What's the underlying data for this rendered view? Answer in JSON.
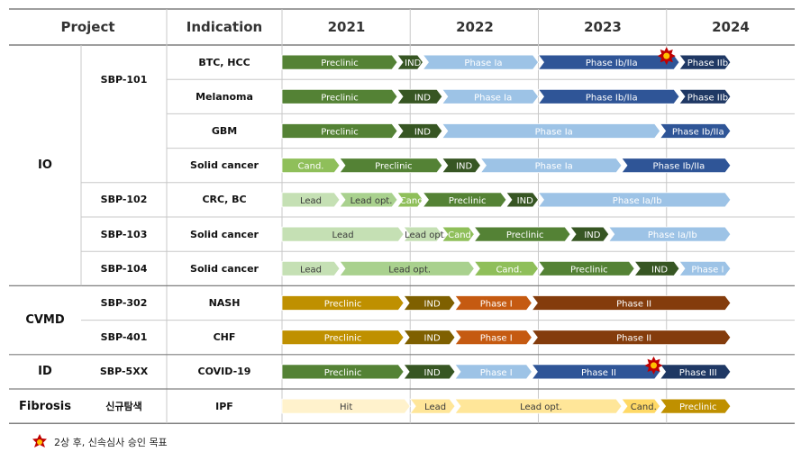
{
  "headers": {
    "project": "Project",
    "indication": "Indication",
    "years": [
      "2021",
      "2022",
      "2023",
      "2024"
    ]
  },
  "groups": [
    {
      "name": "IO",
      "rows": [
        0,
        6
      ]
    },
    {
      "name": "CVMD",
      "rows": [
        7,
        8
      ]
    },
    {
      "name": "ID",
      "rows": [
        9,
        9
      ]
    },
    {
      "name": "Fibrosis",
      "rows": [
        10,
        10
      ]
    }
  ],
  "programs": [
    {
      "name": "SBP-101",
      "rows": [
        0,
        3
      ]
    },
    {
      "name": "SBP-102",
      "rows": [
        4,
        4
      ]
    },
    {
      "name": "SBP-103",
      "rows": [
        5,
        5
      ]
    },
    {
      "name": "SBP-104",
      "rows": [
        6,
        6
      ]
    },
    {
      "name": "SBP-302",
      "rows": [
        7,
        7
      ]
    },
    {
      "name": "SBP-401",
      "rows": [
        8,
        8
      ]
    },
    {
      "name": "SBP-5XX",
      "rows": [
        9,
        9
      ]
    },
    {
      "name": "신규탐색",
      "rows": [
        10,
        10
      ]
    }
  ],
  "colors": {
    "header_text": "#333333",
    "grid": "#c8c8c8",
    "rule": "#7f7f7f",
    "candidate": "#8fbf5a",
    "lead_light": "#c5e0b4",
    "lead_opt_light": "#a9d18e",
    "lead_2": "#b4d79a",
    "preclinic_green": "#548235",
    "ind_dark_green": "#375623",
    "phase_light_blue": "#9dc3e6",
    "phase_dark_blue": "#2f5597",
    "phase_navy": "#1f3864",
    "gold": "#bf9000",
    "orange": "#c55a11",
    "brown": "#843c0c",
    "hit": "#fff2cc",
    "lead_yellow": "#ffe699",
    "cand_yellow": "#ffd966",
    "star": "#c00000",
    "star_inner": "#ffc000"
  },
  "chart_data": {
    "type": "gantt",
    "title": "",
    "x_axis": {
      "labels": [
        "2021",
        "2022",
        "2023",
        "2024"
      ],
      "range": [
        2021.0,
        2025.0
      ]
    },
    "legend": {
      "symbol": "star",
      "text": "2상 후, 신속심사 승인 목표"
    },
    "rows": [
      {
        "indication": "BTC, HCC",
        "bars": [
          {
            "label": "Preclinic",
            "start": 2021.0,
            "end": 2021.9,
            "color": "#548235"
          },
          {
            "label": "IND",
            "start": 2021.9,
            "end": 2022.1,
            "color": "#375623"
          },
          {
            "label": "Phase Ia",
            "start": 2022.1,
            "end": 2023.0,
            "color": "#9dc3e6"
          },
          {
            "label": "Phase Ib/IIa",
            "start": 2023.0,
            "end": 2024.1,
            "color": "#2f5597"
          },
          {
            "label": "Phase IIb",
            "start": 2024.1,
            "end": 2024.5,
            "color": "#1f3864"
          }
        ],
        "star": 2024.0
      },
      {
        "indication": "Melanoma",
        "bars": [
          {
            "label": "Preclinic",
            "start": 2021.0,
            "end": 2021.9,
            "color": "#548235"
          },
          {
            "label": "IND",
            "start": 2021.9,
            "end": 2022.25,
            "color": "#375623"
          },
          {
            "label": "Phase Ia",
            "start": 2022.25,
            "end": 2023.0,
            "color": "#9dc3e6"
          },
          {
            "label": "Phase Ib/IIa",
            "start": 2023.0,
            "end": 2024.1,
            "color": "#2f5597"
          },
          {
            "label": "Phase IIb",
            "start": 2024.1,
            "end": 2024.5,
            "color": "#1f3864"
          }
        ]
      },
      {
        "indication": "GBM",
        "bars": [
          {
            "label": "Preclinic",
            "start": 2021.0,
            "end": 2021.9,
            "color": "#548235"
          },
          {
            "label": "IND",
            "start": 2021.9,
            "end": 2022.25,
            "color": "#375623"
          },
          {
            "label": "Phase Ia",
            "start": 2022.25,
            "end": 2023.95,
            "color": "#9dc3e6"
          },
          {
            "label": "Phase Ib/IIa",
            "start": 2023.95,
            "end": 2024.5,
            "color": "#2f5597"
          }
        ]
      },
      {
        "indication": "Solid cancer",
        "bars": [
          {
            "label": "Cand.",
            "start": 2021.0,
            "end": 2021.45,
            "color": "#8fbf5a"
          },
          {
            "label": "Preclinic",
            "start": 2021.45,
            "end": 2022.25,
            "color": "#548235"
          },
          {
            "label": "IND",
            "start": 2022.25,
            "end": 2022.55,
            "color": "#375623"
          },
          {
            "label": "Phase Ia",
            "start": 2022.55,
            "end": 2023.65,
            "color": "#9dc3e6"
          },
          {
            "label": "Phase Ib/IIa",
            "start": 2023.65,
            "end": 2024.5,
            "color": "#2f5597"
          }
        ]
      },
      {
        "indication": "CRC, BC",
        "bars": [
          {
            "label": "Lead",
            "start": 2021.0,
            "end": 2021.45,
            "color": "#c5e0b4"
          },
          {
            "label": "Lead opt.",
            "start": 2021.45,
            "end": 2021.9,
            "color": "#a9d18e"
          },
          {
            "label": "Cand.",
            "start": 2021.9,
            "end": 2022.1,
            "color": "#8fbf5a"
          },
          {
            "label": "Preclinic",
            "start": 2022.1,
            "end": 2022.75,
            "color": "#548235"
          },
          {
            "label": "IND",
            "start": 2022.75,
            "end": 2023.0,
            "color": "#375623"
          },
          {
            "label": "Phase Ia/Ib",
            "start": 2023.0,
            "end": 2024.5,
            "color": "#9dc3e6"
          }
        ]
      },
      {
        "indication": "Solid cancer",
        "bars": [
          {
            "label": "Lead",
            "start": 2021.0,
            "end": 2021.95,
            "color": "#c5e0b4"
          },
          {
            "label": "Lead opt.",
            "start": 2021.95,
            "end": 2022.25,
            "color": "#c5e0b4"
          },
          {
            "label": "Cand.",
            "start": 2022.25,
            "end": 2022.5,
            "color": "#8fbf5a"
          },
          {
            "label": "Preclinic",
            "start": 2022.5,
            "end": 2023.25,
            "color": "#548235"
          },
          {
            "label": "IND",
            "start": 2023.25,
            "end": 2023.55,
            "color": "#375623"
          },
          {
            "label": "Phase Ia/Ib",
            "start": 2023.55,
            "end": 2024.5,
            "color": "#9dc3e6"
          }
        ]
      },
      {
        "indication": "Solid cancer",
        "bars": [
          {
            "label": "Lead",
            "start": 2021.0,
            "end": 2021.45,
            "color": "#c5e0b4"
          },
          {
            "label": "Lead opt.",
            "start": 2021.45,
            "end": 2022.5,
            "color": "#a9d18e"
          },
          {
            "label": "Cand.",
            "start": 2022.5,
            "end": 2023.0,
            "color": "#8fbf5a"
          },
          {
            "label": "Preclinic",
            "start": 2023.0,
            "end": 2023.75,
            "color": "#548235"
          },
          {
            "label": "IND",
            "start": 2023.75,
            "end": 2024.1,
            "color": "#375623"
          },
          {
            "label": "Phase I",
            "start": 2024.1,
            "end": 2024.5,
            "color": "#9dc3e6"
          }
        ]
      },
      {
        "indication": "NASH",
        "bars": [
          {
            "label": "Preclinic",
            "start": 2021.0,
            "end": 2021.95,
            "color": "#bf9000"
          },
          {
            "label": "IND",
            "start": 2021.95,
            "end": 2022.35,
            "color": "#7f6000"
          },
          {
            "label": "Phase I",
            "start": 2022.35,
            "end": 2022.95,
            "color": "#c55a11"
          },
          {
            "label": "Phase II",
            "start": 2022.95,
            "end": 2024.5,
            "color": "#843c0c"
          }
        ]
      },
      {
        "indication": "CHF",
        "bars": [
          {
            "label": "Preclinic",
            "start": 2021.0,
            "end": 2021.95,
            "color": "#bf9000"
          },
          {
            "label": "IND",
            "start": 2021.95,
            "end": 2022.35,
            "color": "#7f6000"
          },
          {
            "label": "Phase I",
            "start": 2022.35,
            "end": 2022.95,
            "color": "#c55a11"
          },
          {
            "label": "Phase II",
            "start": 2022.95,
            "end": 2024.5,
            "color": "#843c0c"
          }
        ]
      },
      {
        "indication": "COVID-19",
        "bars": [
          {
            "label": "Preclinic",
            "start": 2021.0,
            "end": 2021.95,
            "color": "#548235"
          },
          {
            "label": "IND",
            "start": 2021.95,
            "end": 2022.35,
            "color": "#375623"
          },
          {
            "label": "Phase I",
            "start": 2022.35,
            "end": 2022.95,
            "color": "#9dc3e6"
          },
          {
            "label": "Phase II",
            "start": 2022.95,
            "end": 2023.95,
            "color": "#2f5597"
          },
          {
            "label": "Phase III",
            "start": 2023.95,
            "end": 2024.5,
            "color": "#1f3864"
          }
        ],
        "star": 2023.9
      },
      {
        "indication": "IPF",
        "bars": [
          {
            "label": "Hit",
            "start": 2021.0,
            "end": 2022.0,
            "color": "#fff2cc"
          },
          {
            "label": "Lead",
            "start": 2022.0,
            "end": 2022.35,
            "color": "#ffe699"
          },
          {
            "label": "Lead opt.",
            "start": 2022.35,
            "end": 2023.65,
            "color": "#ffe699"
          },
          {
            "label": "Cand.",
            "start": 2023.65,
            "end": 2023.95,
            "color": "#ffd966"
          },
          {
            "label": "Preclinic",
            "start": 2023.95,
            "end": 2024.5,
            "color": "#bf9000"
          }
        ]
      }
    ]
  }
}
